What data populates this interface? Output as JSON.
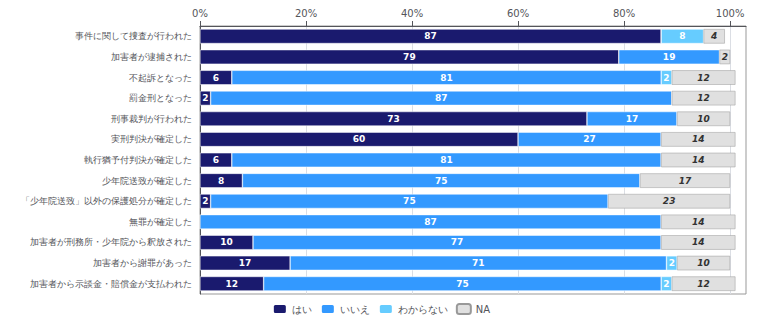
{
  "chart_data": {
    "type": "bar",
    "orientation": "horizontal",
    "stacked": true,
    "categories": [
      "事件に関して捜査が行われた",
      "加害者が逮捕された",
      "不起訴となった",
      "罰金刑となった",
      "刑事裁判が行われた",
      "実刑判決が確定した",
      "執行猶予付判決が確定した",
      "少年院送致が確定した",
      "「少年院送致」以外の保護処分が確定した",
      "無罪が確定した",
      "加害者が刑務所・少年院から釈放された",
      "加害者から謝罪があった",
      "加害者から示談金・賠償金が支払われた"
    ],
    "series": [
      {
        "name": "はい",
        "color": "#1a1a6e",
        "values": [
          87,
          79,
          6,
          2,
          73,
          60,
          6,
          8,
          2,
          0,
          10,
          17,
          12
        ]
      },
      {
        "name": "いいえ",
        "color": "#3399ff",
        "values": [
          0,
          19,
          81,
          87,
          17,
          27,
          81,
          75,
          75,
          87,
          77,
          71,
          75
        ]
      },
      {
        "name": "わからない",
        "color": "#66ccff",
        "values": [
          8,
          0,
          2,
          0,
          0,
          0,
          0,
          0,
          0,
          0,
          0,
          2,
          2
        ]
      },
      {
        "name": "NA",
        "color": "#e0e0e0",
        "values": [
          4,
          2,
          12,
          12,
          10,
          14,
          14,
          17,
          23,
          14,
          14,
          10,
          12
        ]
      }
    ],
    "xlim": [
      0,
      103
    ],
    "xticks": [
      {
        "value": 0,
        "label": "0%"
      },
      {
        "value": 20,
        "label": "20%"
      },
      {
        "value": 40,
        "label": "40%"
      },
      {
        "value": 60,
        "label": "60%"
      },
      {
        "value": 80,
        "label": "80%"
      },
      {
        "value": 100,
        "label": "100%"
      }
    ],
    "grid": true,
    "legend": "bottom",
    "data_labels": true
  }
}
